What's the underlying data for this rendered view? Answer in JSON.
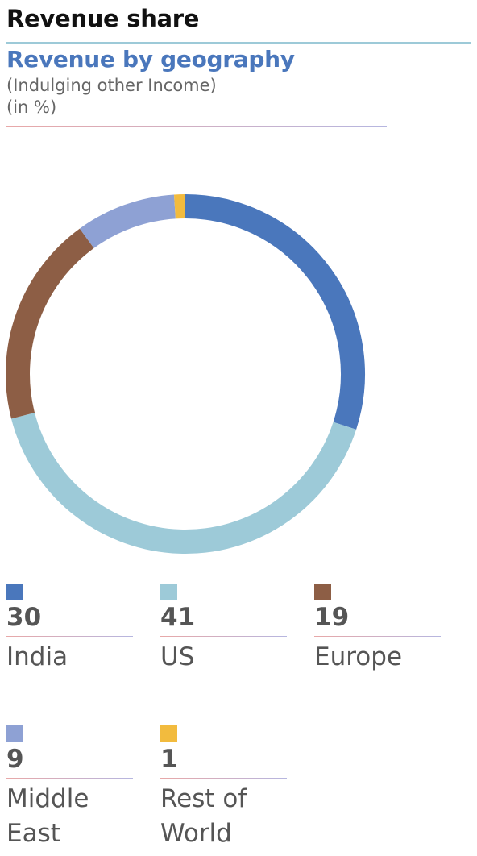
{
  "header": {
    "section_title": "Revenue share"
  },
  "chart_data": {
    "type": "pie",
    "title": "Revenue by geography",
    "subtitle_lines": [
      "(Indulging other Income)",
      "(in %)"
    ],
    "categories": [
      "India",
      "US",
      "Europe",
      "Middle East",
      "Rest of World"
    ],
    "values": [
      30,
      41,
      19,
      9,
      1
    ],
    "colors": [
      "#4a77bc",
      "#9dcad8",
      "#8d5e45",
      "#8ea1d4",
      "#f2bb3e"
    ],
    "donut": true
  },
  "legend": [
    {
      "value": "30",
      "label": "India",
      "color": "#4a77bc"
    },
    {
      "value": "41",
      "label": "US",
      "color": "#9dcad8"
    },
    {
      "value": "19",
      "label": "Europe",
      "color": "#8d5e45"
    },
    {
      "value": "9",
      "label": "Middle East",
      "color": "#8ea1d4"
    },
    {
      "value": "1",
      "label": "Rest of World",
      "color": "#f2bb3e"
    }
  ]
}
